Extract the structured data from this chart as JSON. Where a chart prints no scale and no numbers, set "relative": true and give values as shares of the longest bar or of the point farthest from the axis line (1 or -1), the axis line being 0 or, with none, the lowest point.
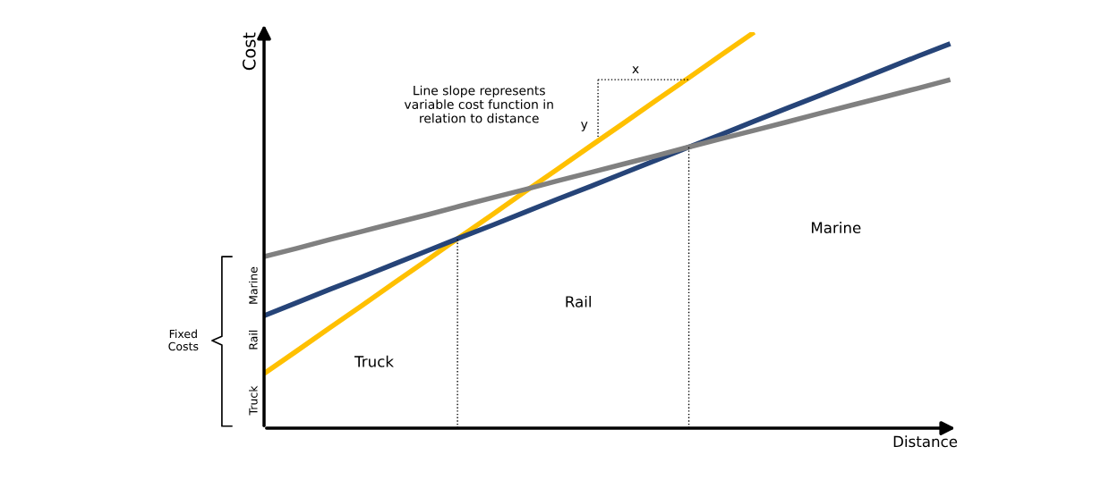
{
  "chart_data": {
    "type": "line",
    "relative": true,
    "xlabel": "Distance",
    "ylabel": "Cost",
    "categories": [
      null,
      null,
      null,
      null,
      null,
      null,
      null,
      null,
      null,
      null,
      null,
      null,
      null,
      null,
      null,
      null,
      null,
      null,
      null,
      null,
      null,
      null
    ],
    "series": [
      {
        "color": "#ffc000",
        "values": [
          0.138,
          0.195,
          0.253,
          0.31,
          0.368,
          0.425,
          0.483,
          0.54,
          0.598,
          0.655,
          0.713,
          0.77,
          0.828,
          0.885,
          0.943,
          1,
          null,
          null,
          null,
          null,
          null,
          null
        ]
      },
      {
        "color": "#264478",
        "values": [
          0.284,
          0.317,
          0.35,
          0.382,
          0.415,
          0.448,
          0.481,
          0.513,
          0.546,
          0.579,
          0.611,
          0.644,
          0.677,
          0.71,
          0.742,
          0.775,
          0.808,
          0.84,
          0.873,
          0.906,
          0.939,
          0.971
        ]
      },
      {
        "color": "#808080",
        "values": [
          0.433,
          0.454,
          0.476,
          0.497,
          0.518,
          0.539,
          0.561,
          0.582,
          0.603,
          0.625,
          0.646,
          0.667,
          0.688,
          0.71,
          0.731,
          0.752,
          0.773,
          0.795,
          0.816,
          0.837,
          0.858,
          0.88
        ]
      }
    ],
    "annotations": [
      "Line slope represents\nvariable cost function in\nrelation to distance",
      "x",
      "y",
      "Truck",
      "Rail",
      "Marine",
      "Truck",
      "Rail",
      "Marine",
      "Fixed\nCosts"
    ],
    "marker": "none",
    "line_style": "solid"
  }
}
